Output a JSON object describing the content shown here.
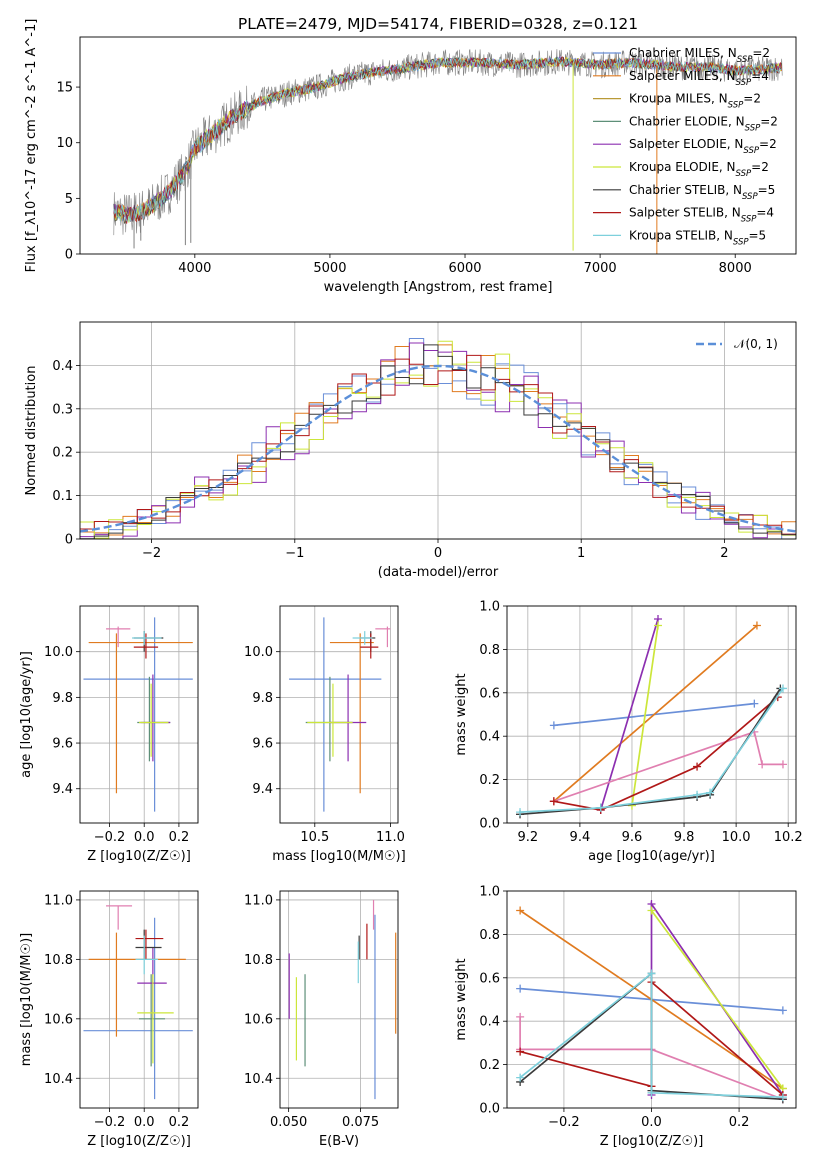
{
  "figure_title": "PLATE=2479, MJD=54174, FIBERID=0328, z=0.121",
  "colors": {
    "Chabrier MILES, N_SSP=2": "#6a8fd8",
    "Salpeter MILES, N_SSP=4": "#e07b20",
    "Kroupa MILES, N_SSP=2": "#b99a37",
    "Chabrier ELODIE, N_SSP=2": "#5e8f78",
    "Salpeter ELODIE, N_SSP=2": "#8c2fb0",
    "Kroupa ELODIE, N_SSP=2": "#cce63a",
    "Chabrier STELIB, N_SSP=5": "#3a3a3a",
    "Salpeter STELIB, N_SSP=4": "#b01818",
    "Kroupa STELIB, N_SSP=5": "#7ed0dc",
    "data": "#808080",
    "pink": "#e07fb0",
    "gaussian": "#5b8fd8"
  },
  "chart_data": [
    {
      "id": "spectrum",
      "type": "line",
      "title": "PLATE=2479, MJD=54174, FIBERID=0328, z=0.121",
      "xlabel": "wavelength [Angstrom, rest frame]",
      "ylabel": "Flux [f_λ10^-17 erg cm^-2 s^-1 A^-1]",
      "xlim": [
        3150,
        8450
      ],
      "ylim": [
        0,
        19.5
      ],
      "xticks": [
        4000,
        5000,
        6000,
        7000,
        8000
      ],
      "yticks": [
        0,
        5,
        10,
        15
      ],
      "legend_position": "right",
      "legend": [
        "Chabrier MILES, N_SSP=2",
        "Salpeter MILES, N_SSP=4",
        "Kroupa MILES, N_SSP=2",
        "Chabrier ELODIE, N_SSP=2",
        "Salpeter ELODIE, N_SSP=2",
        "Kroupa ELODIE, N_SSP=2",
        "Chabrier STELIB, N_SSP=5",
        "Salpeter STELIB, N_SSP=4",
        "Kroupa STELIB, N_SSP=5"
      ],
      "continuum": {
        "x": [
          3400,
          3500,
          3600,
          3700,
          3800,
          3900,
          3950,
          4000,
          4100,
          4200,
          4300,
          4500,
          4700,
          4900,
          5100,
          5300,
          5500,
          5800,
          6100,
          6400,
          6700,
          7000,
          7200,
          7400,
          7600,
          7800,
          8000,
          8200,
          8350
        ],
        "y": [
          3.8,
          3.5,
          3.8,
          4.5,
          5.5,
          7.0,
          8.0,
          9.5,
          10.5,
          11.5,
          12.5,
          13.8,
          14.5,
          15.0,
          15.8,
          16.3,
          16.6,
          17.2,
          17.2,
          17.0,
          17.3,
          17.0,
          17.2,
          17.0,
          16.8,
          16.8,
          16.5,
          16.6,
          16.8
        ]
      },
      "dips": [
        {
          "x": 3550,
          "y": 0.5
        },
        {
          "x": 3600,
          "y": 1.2
        },
        {
          "x": 3930,
          "y": 0.8
        },
        {
          "x": 3970,
          "y": 1.0
        },
        {
          "x": 6800,
          "y": 0.3
        },
        {
          "x": 7420,
          "y": 0.0
        }
      ]
    },
    {
      "id": "residuals",
      "type": "histogram",
      "xlabel": "(data-model)/error",
      "ylabel": "Normed distribution",
      "xlim": [
        -2.5,
        2.5
      ],
      "ylim": [
        0,
        0.5
      ],
      "xticks": [
        -2,
        -1,
        0,
        1,
        2
      ],
      "yticks": [
        0.0,
        0.1,
        0.2,
        0.3,
        0.4
      ],
      "grid": true,
      "legend_position": "top-right",
      "legend": [
        "𝒩(0, 1)"
      ],
      "bin_width": 0.1,
      "bins_start": -2.5,
      "series_colors": [
        "#6a8fd8",
        "#e07b20",
        "#8c2fb0",
        "#cce63a",
        "#b01818",
        "#3a3a3a"
      ],
      "amplitudes": [
        0.06,
        0.05,
        0.07,
        0.06,
        0.04,
        0.05
      ]
    },
    {
      "id": "age_vs_Z",
      "type": "errorbar",
      "xlabel": "Z [log10(Z/Z☉)]",
      "ylabel": "age  [log10(age/yr)]",
      "xlim": [
        -0.37,
        0.31
      ],
      "ylim": [
        9.25,
        10.2
      ],
      "xticks": [
        -0.2,
        0.0,
        0.2
      ],
      "xticklabels": [
        "−0.2",
        "0.0",
        "0.2"
      ],
      "yticks": [
        9.4,
        9.6,
        9.8,
        10.0
      ],
      "yticklabels": [
        "9.4",
        "9.6",
        "9.8",
        "10.0"
      ],
      "grid": true,
      "points": [
        {
          "c": "#6a8fd8",
          "x": 0.06,
          "xe": [
            -0.35,
            0.28
          ],
          "y": 9.88,
          "ye": [
            9.3,
            10.15
          ]
        },
        {
          "c": "#e07b20",
          "x": -0.16,
          "xe": [
            -0.32,
            0.28
          ],
          "y": 10.04,
          "ye": [
            9.38,
            10.08
          ]
        },
        {
          "c": "#5e8f78",
          "x": 0.03,
          "xe": [
            -0.04,
            0.15
          ],
          "y": 9.69,
          "ye": [
            9.52,
            9.89
          ]
        },
        {
          "c": "#8c2fb0",
          "x": 0.05,
          "xe": [
            -0.02,
            0.15
          ],
          "y": 9.69,
          "ye": [
            9.52,
            9.9
          ]
        },
        {
          "c": "#cce63a",
          "x": 0.04,
          "xe": [
            -0.03,
            0.14
          ],
          "y": 9.69,
          "ye": [
            9.54,
            9.86
          ]
        },
        {
          "c": "#3a3a3a",
          "x": 0.0,
          "xe": [
            -0.06,
            0.11
          ],
          "y": 10.06,
          "ye": [
            10.0,
            10.09
          ]
        },
        {
          "c": "#b01818",
          "x": 0.01,
          "xe": [
            -0.06,
            0.08
          ],
          "y": 10.02,
          "ye": [
            9.97,
            10.08
          ]
        },
        {
          "c": "#7ed0dc",
          "x": 0.0,
          "xe": [
            -0.07,
            0.1
          ],
          "y": 10.06,
          "ye": [
            10.03,
            10.09
          ]
        },
        {
          "c": "#e07fb0",
          "x": -0.15,
          "xe": [
            -0.22,
            -0.08
          ],
          "y": 10.1,
          "ye": [
            10.02,
            10.11
          ]
        }
      ]
    },
    {
      "id": "age_vs_mass",
      "type": "errorbar",
      "xlabel": "mass [log10(M/M☉)]",
      "ylabel": "",
      "xlim": [
        10.27,
        11.05
      ],
      "ylim": [
        9.25,
        10.2
      ],
      "xticks": [
        10.5,
        11.0
      ],
      "xticklabels": [
        "10.5",
        "11.0"
      ],
      "yticks": [
        9.4,
        9.6,
        9.8,
        10.0
      ],
      "yticklabels": [
        "9.4",
        "9.6",
        "9.8",
        "10.0"
      ],
      "grid": true,
      "points": [
        {
          "c": "#6a8fd8",
          "x": 10.56,
          "xe": [
            10.33,
            10.94
          ],
          "y": 9.88,
          "ye": [
            9.3,
            10.15
          ]
        },
        {
          "c": "#e07b20",
          "x": 10.8,
          "xe": [
            10.6,
            10.89
          ],
          "y": 10.04,
          "ye": [
            9.38,
            10.08
          ]
        },
        {
          "c": "#5e8f78",
          "x": 10.6,
          "xe": [
            10.44,
            10.75
          ],
          "y": 9.69,
          "ye": [
            9.52,
            9.89
          ]
        },
        {
          "c": "#8c2fb0",
          "x": 10.72,
          "xe": [
            10.6,
            10.84
          ],
          "y": 9.69,
          "ye": [
            9.52,
            9.9
          ]
        },
        {
          "c": "#cce63a",
          "x": 10.62,
          "xe": [
            10.45,
            10.75
          ],
          "y": 9.69,
          "ye": [
            9.54,
            9.86
          ]
        },
        {
          "c": "#3a3a3a",
          "x": 10.87,
          "xe": [
            10.8,
            10.9
          ],
          "y": 10.06,
          "ye": [
            10.0,
            10.09
          ]
        },
        {
          "c": "#b01818",
          "x": 10.87,
          "xe": [
            10.8,
            10.92
          ],
          "y": 10.02,
          "ye": [
            9.97,
            10.08
          ]
        },
        {
          "c": "#7ed0dc",
          "x": 10.83,
          "xe": [
            10.75,
            10.88
          ],
          "y": 10.06,
          "ye": [
            10.03,
            10.09
          ]
        },
        {
          "c": "#e07fb0",
          "x": 10.98,
          "xe": [
            10.9,
            11.0
          ],
          "y": 10.1,
          "ye": [
            10.02,
            10.11
          ]
        }
      ]
    },
    {
      "id": "weight_vs_age",
      "type": "line",
      "xlabel": "age  [log10(age/yr)]",
      "ylabel": "mass weight",
      "xlim": [
        9.12,
        10.23
      ],
      "ylim": [
        0,
        1.0
      ],
      "xticks": [
        9.2,
        9.4,
        9.6,
        9.8,
        10.0,
        10.2
      ],
      "xticklabels": [
        "9.2",
        "9.4",
        "9.6",
        "9.8",
        "10.0",
        "10.2"
      ],
      "yticks": [
        0,
        0.2,
        0.4,
        0.6,
        0.8,
        1.0
      ],
      "yticklabels": [
        "0.0",
        "0.2",
        "0.4",
        "0.6",
        "0.8",
        "1.0"
      ],
      "grid": true,
      "series": [
        {
          "c": "#6a8fd8",
          "x": [
            9.3,
            10.07
          ],
          "y": [
            0.45,
            0.55
          ]
        },
        {
          "c": "#e07b20",
          "x": [
            9.3,
            10.08
          ],
          "y": [
            0.1,
            0.91
          ]
        },
        {
          "c": "#8c2fb0",
          "x": [
            9.48,
            9.7
          ],
          "y": [
            0.06,
            0.94
          ]
        },
        {
          "c": "#cce63a",
          "x": [
            9.6,
            9.7
          ],
          "y": [
            0.08,
            0.91
          ]
        },
        {
          "c": "#e07fb0",
          "x": [
            9.3,
            10.07,
            10.1,
            10.18
          ],
          "y": [
            0.1,
            0.42,
            0.27,
            0.27
          ]
        },
        {
          "c": "#b01818",
          "x": [
            9.3,
            9.48,
            9.85,
            10.16
          ],
          "y": [
            0.1,
            0.06,
            0.26,
            0.58
          ]
        },
        {
          "c": "#3a3a3a",
          "x": [
            9.17,
            9.48,
            9.85,
            9.9,
            10.17
          ],
          "y": [
            0.04,
            0.07,
            0.12,
            0.13,
            0.62
          ]
        },
        {
          "c": "#7ed0dc",
          "x": [
            9.17,
            9.48,
            9.85,
            9.9,
            10.18
          ],
          "y": [
            0.05,
            0.07,
            0.13,
            0.14,
            0.62
          ]
        }
      ]
    },
    {
      "id": "mass_vs_Z",
      "type": "errorbar",
      "xlabel": "Z [log10(Z/Z☉)]",
      "ylabel": "mass [log10(M/M☉)]",
      "xlim": [
        -0.37,
        0.31
      ],
      "ylim": [
        10.3,
        11.03
      ],
      "xticks": [
        -0.2,
        0.0,
        0.2
      ],
      "xticklabels": [
        "−0.2",
        "0.0",
        "0.2"
      ],
      "yticks": [
        10.4,
        10.6,
        10.8,
        11.0
      ],
      "yticklabels": [
        "10.4",
        "10.6",
        "10.8",
        "11.0"
      ],
      "grid": true,
      "points": [
        {
          "c": "#6a8fd8",
          "x": 0.06,
          "xe": [
            -0.35,
            0.28
          ],
          "y": 10.56,
          "ye": [
            10.33,
            10.94
          ]
        },
        {
          "c": "#e07b20",
          "x": -0.16,
          "xe": [
            -0.32,
            0.24
          ],
          "y": 10.8,
          "ye": [
            10.54,
            10.89
          ]
        },
        {
          "c": "#5e8f78",
          "x": 0.04,
          "xe": [
            -0.03,
            0.12
          ],
          "y": 10.6,
          "ye": [
            10.44,
            10.75
          ]
        },
        {
          "c": "#8c2fb0",
          "x": 0.05,
          "xe": [
            -0.04,
            0.13
          ],
          "y": 10.72,
          "ye": [
            10.6,
            10.84
          ]
        },
        {
          "c": "#cce63a",
          "x": 0.05,
          "xe": [
            -0.04,
            0.17
          ],
          "y": 10.62,
          "ye": [
            10.45,
            10.75
          ]
        },
        {
          "c": "#3a3a3a",
          "x": 0.0,
          "xe": [
            -0.05,
            0.1
          ],
          "y": 10.84,
          "ye": [
            10.8,
            10.9
          ]
        },
        {
          "c": "#b01818",
          "x": 0.01,
          "xe": [
            -0.05,
            0.11
          ],
          "y": 10.87,
          "ye": [
            10.8,
            10.9
          ]
        },
        {
          "c": "#7ed0dc",
          "x": 0.0,
          "xe": [
            -0.05,
            0.08
          ],
          "y": 10.8,
          "ye": [
            10.75,
            10.88
          ]
        },
        {
          "c": "#e07fb0",
          "x": -0.15,
          "xe": [
            -0.22,
            -0.07
          ],
          "y": 10.98,
          "ye": [
            10.9,
            10.98
          ]
        }
      ]
    },
    {
      "id": "mass_vs_EBV",
      "type": "errorbar",
      "xlabel": "E(B-V)",
      "ylabel": "",
      "xlim": [
        0.047,
        0.088
      ],
      "ylim": [
        10.3,
        11.03
      ],
      "xticks": [
        0.05,
        0.075
      ],
      "xticklabels": [
        "0.050",
        "0.075"
      ],
      "yticks": [
        10.4,
        10.6,
        10.8,
        11.0
      ],
      "yticklabels": [
        "10.4",
        "10.6",
        "10.8",
        "11.0"
      ],
      "grid": true,
      "points": [
        {
          "c": "#8c2fb0",
          "x": 0.0502,
          "y": 10.72,
          "ye": [
            10.6,
            10.82
          ]
        },
        {
          "c": "#cce63a",
          "x": 0.0527,
          "y": 10.62,
          "ye": [
            10.46,
            10.74
          ]
        },
        {
          "c": "#5e8f78",
          "x": 0.0557,
          "y": 10.6,
          "ye": [
            10.44,
            10.75
          ]
        },
        {
          "c": "#3a3a3a",
          "x": 0.0745,
          "y": 10.84,
          "ye": [
            10.8,
            10.88
          ]
        },
        {
          "c": "#7ed0dc",
          "x": 0.0742,
          "y": 10.8,
          "ye": [
            10.72,
            10.86
          ]
        },
        {
          "c": "#b01818",
          "x": 0.0772,
          "y": 10.87,
          "ye": [
            10.8,
            10.92
          ]
        },
        {
          "c": "#e07fb0",
          "x": 0.0795,
          "y": 10.98,
          "ye": [
            10.9,
            11.0
          ]
        },
        {
          "c": "#6a8fd8",
          "x": 0.08,
          "y": 10.56,
          "ye": [
            10.33,
            10.95
          ]
        },
        {
          "c": "#e07b20",
          "x": 0.0872,
          "y": 10.8,
          "ye": [
            10.55,
            10.89
          ]
        }
      ]
    },
    {
      "id": "weight_vs_Z",
      "type": "line",
      "xlabel": "Z [log10(Z/Z☉)]",
      "ylabel": "mass weight",
      "xlim": [
        -0.33,
        0.33
      ],
      "ylim": [
        0,
        1.0
      ],
      "xticks": [
        -0.2,
        0.0,
        0.2
      ],
      "xticklabels": [
        "−0.2",
        "0.0",
        "0.2"
      ],
      "yticks": [
        0,
        0.2,
        0.4,
        0.6,
        0.8,
        1.0
      ],
      "yticklabels": [
        "0.0",
        "0.2",
        "0.4",
        "0.6",
        "0.8",
        "1.0"
      ],
      "grid": true,
      "series": [
        {
          "c": "#6a8fd8",
          "x": [
            -0.3,
            0.3
          ],
          "y": [
            0.55,
            0.45
          ]
        },
        {
          "c": "#e07b20",
          "x": [
            -0.3,
            0.3
          ],
          "y": [
            0.91,
            0.09
          ]
        },
        {
          "c": "#8c2fb0",
          "x": [
            0.0,
            0.0,
            0.3
          ],
          "y": [
            0.06,
            0.94,
            0.06
          ]
        },
        {
          "c": "#cce63a",
          "x": [
            0.0,
            0.3
          ],
          "y": [
            0.91,
            0.09
          ]
        },
        {
          "c": "#e07fb0",
          "x": [
            -0.3,
            -0.3,
            0.0,
            0.3
          ],
          "y": [
            0.42,
            0.27,
            0.27,
            0.04
          ]
        },
        {
          "c": "#b01818",
          "x": [
            -0.3,
            0.0,
            0.0,
            0.3
          ],
          "y": [
            0.26,
            0.1,
            0.58,
            0.06
          ]
        },
        {
          "c": "#3a3a3a",
          "x": [
            -0.3,
            0.0,
            0.0,
            0.3
          ],
          "y": [
            0.12,
            0.62,
            0.08,
            0.04
          ]
        },
        {
          "c": "#7ed0dc",
          "x": [
            -0.3,
            0.0,
            0.0,
            0.3
          ],
          "y": [
            0.14,
            0.62,
            0.07,
            0.05
          ]
        }
      ]
    }
  ]
}
